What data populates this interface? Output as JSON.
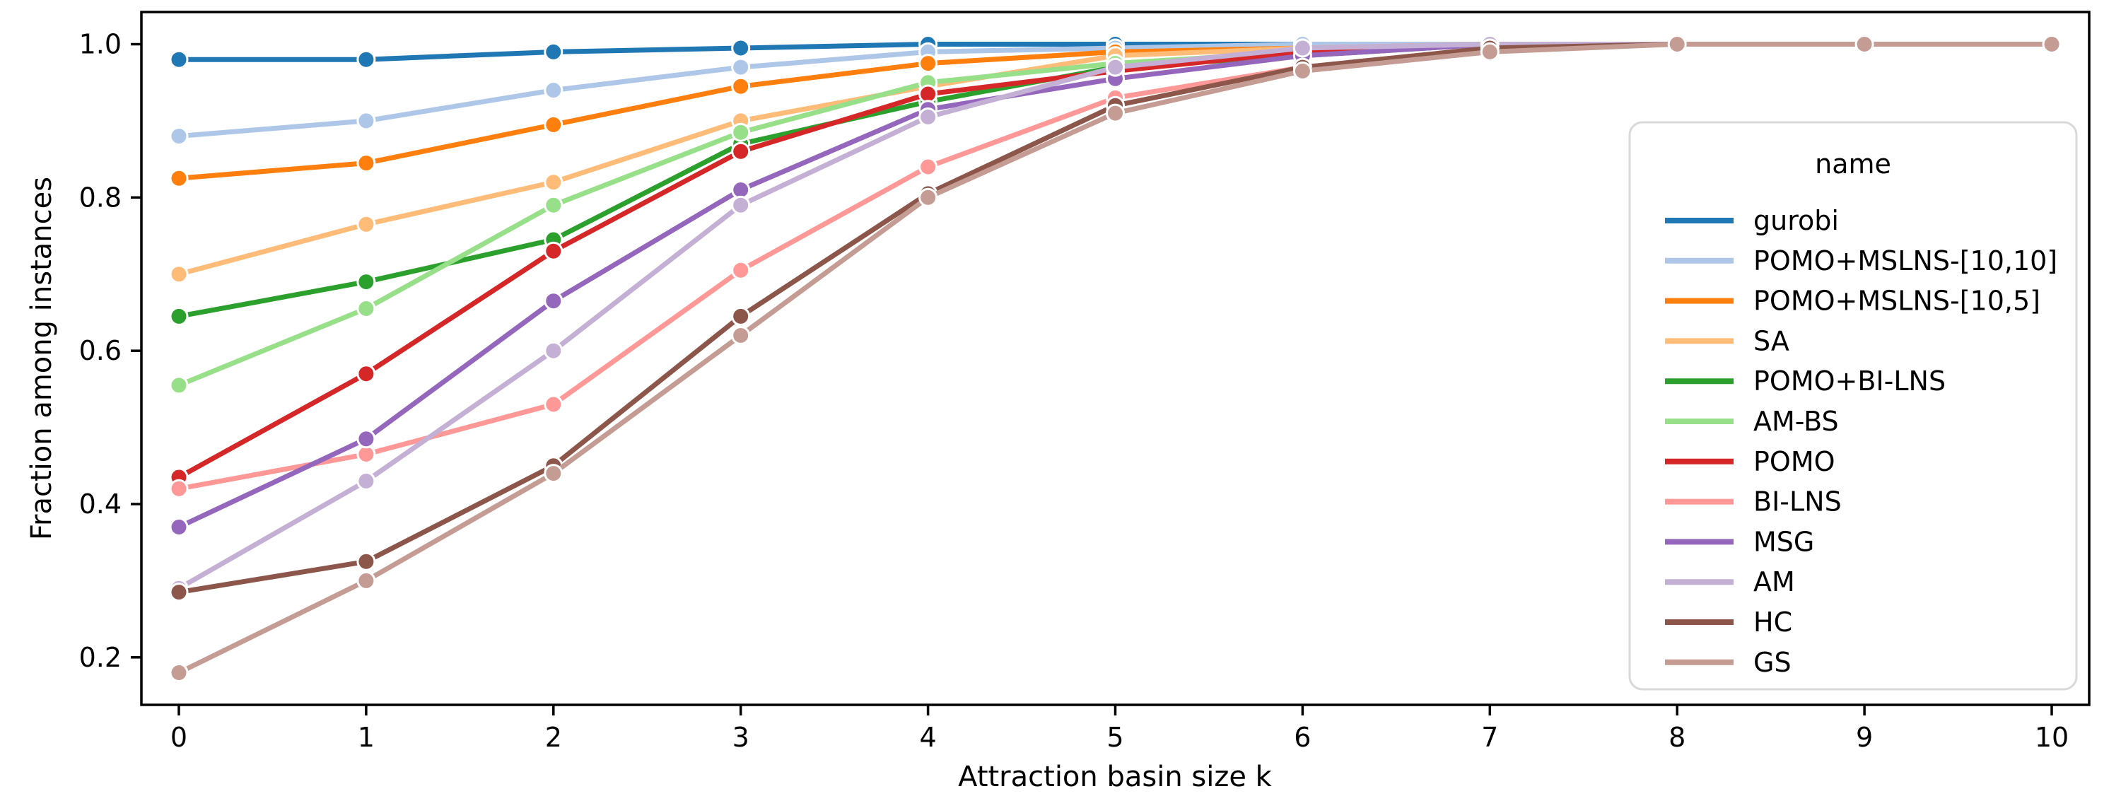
{
  "chart_data": {
    "type": "line",
    "title": "",
    "xlabel": "Attraction basin size k",
    "ylabel": "Fraction among instances",
    "x": [
      0,
      1,
      2,
      3,
      4,
      5,
      6,
      7,
      8,
      9,
      10
    ],
    "xticks": [
      0,
      1,
      2,
      3,
      4,
      5,
      6,
      7,
      8,
      9,
      10
    ],
    "yticks": [
      0.2,
      0.4,
      0.6,
      0.8,
      1.0
    ],
    "ytick_labels": [
      "0.2",
      "0.4",
      "0.6",
      "0.8",
      "1.0"
    ],
    "xlim": [
      -0.2,
      10.2
    ],
    "ylim": [
      0.138,
      1.042
    ],
    "grid": false,
    "legend_title": "name",
    "legend_position": "right",
    "marker": "o",
    "series": [
      {
        "name": "gurobi",
        "color": "#1f77b4",
        "values": [
          0.98,
          0.98,
          0.99,
          0.995,
          1.0,
          1.0,
          1.0,
          1.0,
          1.0,
          1.0,
          1.0
        ]
      },
      {
        "name": "POMO+MSLNS-[10,10]",
        "color": "#aec7e8",
        "values": [
          0.88,
          0.9,
          0.94,
          0.97,
          0.99,
          0.995,
          1.0,
          1.0,
          1.0,
          1.0,
          1.0
        ]
      },
      {
        "name": "POMO+MSLNS-[10,5]",
        "color": "#ff7f0e",
        "values": [
          0.825,
          0.845,
          0.895,
          0.945,
          0.975,
          0.99,
          0.995,
          1.0,
          1.0,
          1.0,
          1.0
        ]
      },
      {
        "name": "SA",
        "color": "#ffbb78",
        "values": [
          0.7,
          0.765,
          0.82,
          0.9,
          0.945,
          0.985,
          0.995,
          1.0,
          1.0,
          1.0,
          1.0
        ]
      },
      {
        "name": "POMO+BI-LNS",
        "color": "#2ca02c",
        "values": [
          0.645,
          0.69,
          0.745,
          0.87,
          0.925,
          0.97,
          0.985,
          1.0,
          1.0,
          1.0,
          1.0
        ]
      },
      {
        "name": "AM-BS",
        "color": "#98df8a",
        "values": [
          0.555,
          0.655,
          0.79,
          0.885,
          0.95,
          0.975,
          0.99,
          1.0,
          1.0,
          1.0,
          1.0
        ]
      },
      {
        "name": "POMO",
        "color": "#d62728",
        "values": [
          0.435,
          0.57,
          0.73,
          0.86,
          0.935,
          0.965,
          0.99,
          1.0,
          1.0,
          1.0,
          1.0
        ]
      },
      {
        "name": "BI-LNS",
        "color": "#ff9896",
        "values": [
          0.42,
          0.465,
          0.53,
          0.705,
          0.84,
          0.93,
          0.97,
          0.995,
          1.0,
          1.0,
          1.0
        ]
      },
      {
        "name": "MSG",
        "color": "#9467bd",
        "values": [
          0.37,
          0.485,
          0.665,
          0.81,
          0.915,
          0.955,
          0.985,
          1.0,
          1.0,
          1.0,
          1.0
        ]
      },
      {
        "name": "AM",
        "color": "#c5b0d5",
        "values": [
          0.29,
          0.43,
          0.6,
          0.79,
          0.905,
          0.97,
          0.995,
          1.0,
          1.0,
          1.0,
          1.0
        ]
      },
      {
        "name": "HC",
        "color": "#8c564b",
        "values": [
          0.285,
          0.325,
          0.45,
          0.645,
          0.805,
          0.92,
          0.97,
          0.995,
          1.0,
          1.0,
          1.0
        ]
      },
      {
        "name": "GS",
        "color": "#c49c94",
        "values": [
          0.18,
          0.3,
          0.44,
          0.62,
          0.8,
          0.91,
          0.965,
          0.99,
          1.0,
          1.0,
          1.0
        ]
      }
    ],
    "style": {
      "axis_color": "#000000",
      "legend_border_color": "#d9d9d9",
      "background": "#ffffff",
      "marker_edge_color": "#ffffff"
    }
  }
}
